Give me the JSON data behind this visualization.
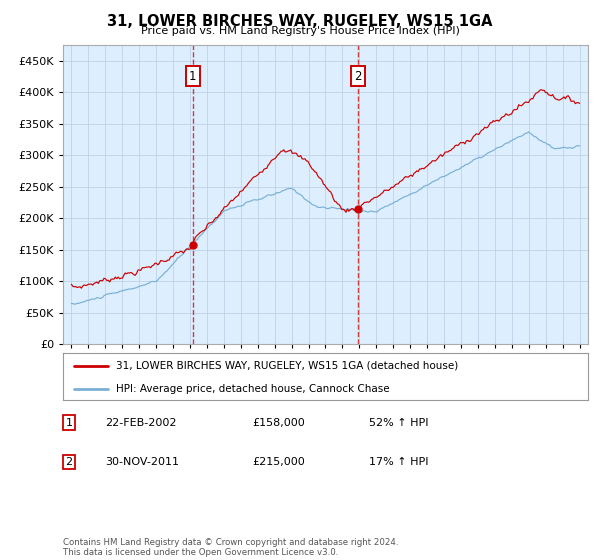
{
  "title": "31, LOWER BIRCHES WAY, RUGELEY, WS15 1GA",
  "subtitle": "Price paid vs. HM Land Registry's House Price Index (HPI)",
  "legend_line1": "31, LOWER BIRCHES WAY, RUGELEY, WS15 1GA (detached house)",
  "legend_line2": "HPI: Average price, detached house, Cannock Chase",
  "annotation1_label": "1",
  "annotation1_date": "22-FEB-2002",
  "annotation1_price": "£158,000",
  "annotation1_pct": "52% ↑ HPI",
  "annotation2_label": "2",
  "annotation2_date": "30-NOV-2011",
  "annotation2_price": "£215,000",
  "annotation2_pct": "17% ↑ HPI",
  "footnote": "Contains HM Land Registry data © Crown copyright and database right 2024.\nThis data is licensed under the Open Government Licence v3.0.",
  "red_color": "#cc0000",
  "blue_color": "#7ab0d4",
  "plot_bg": "#ddeeff",
  "marker1_x": 2002.15,
  "marker1_y": 158000,
  "marker2_x": 2011.92,
  "marker2_y": 215000,
  "ylim": [
    0,
    475000
  ],
  "xlim": [
    1994.5,
    2025.5
  ]
}
